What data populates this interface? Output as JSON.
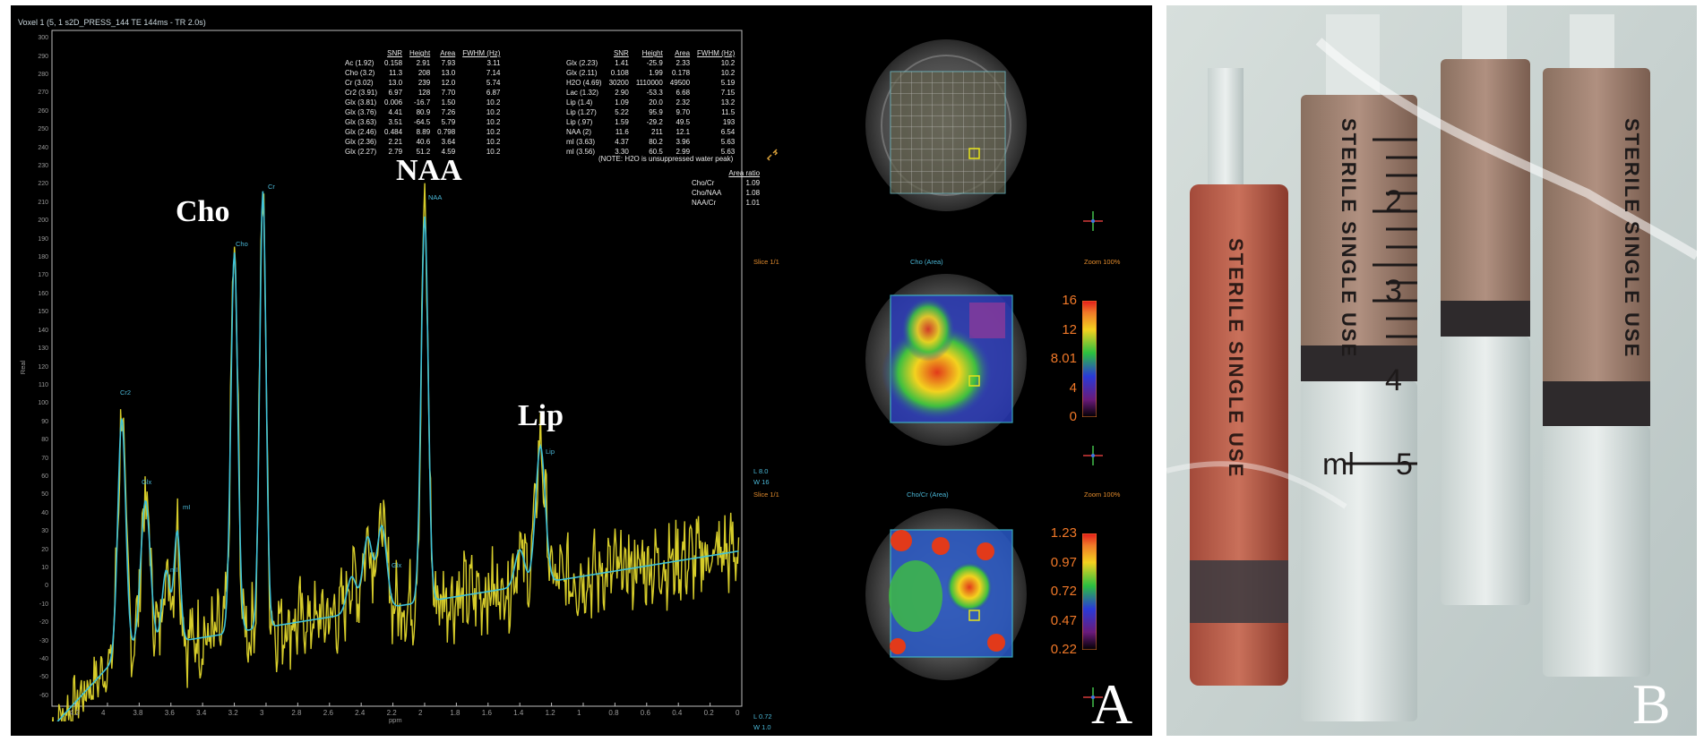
{
  "panel_a": {
    "letter": "A",
    "title": "Voxel 1 (5, 1 s2D_PRESS_144 TE 144ms - TR 2.0s)",
    "y_axis_label": "Real",
    "x_axis_label": "ppm",
    "y_ticks": [
      "300",
      "290",
      "280",
      "270",
      "260",
      "250",
      "240",
      "230",
      "220",
      "210",
      "200",
      "190",
      "180",
      "170",
      "160",
      "150",
      "140",
      "130",
      "120",
      "110",
      "100",
      "90",
      "80",
      "70",
      "60",
      "50",
      "40",
      "30",
      "20",
      "10",
      "0",
      "-10",
      "-20",
      "-30",
      "-40",
      "-50",
      "-60"
    ],
    "x_ticks": [
      "4.2",
      "4",
      "3.8",
      "3.6",
      "3.4",
      "3.2",
      "3",
      "2.8",
      "2.6",
      "2.4",
      "2.2",
      "2",
      "1.8",
      "1.6",
      "1.4",
      "1.2",
      "1",
      "0.8",
      "0.6",
      "0.4",
      "0.2",
      "0"
    ],
    "peak_labels": {
      "cho": "Cho",
      "naa": "NAA",
      "lip": "Lip"
    },
    "peak_small_labels": {
      "cr2": "Cr2",
      "glx": "Glx",
      "mi": "mI",
      "mi2": "mI",
      "cho": "Cho",
      "cr": "Cr",
      "naa": "NAA",
      "glx2": "Glx",
      "lip": "Lip"
    },
    "table_left": {
      "headers": [
        "SNR",
        "Height",
        "Area",
        "FWHM (Hz)"
      ],
      "rows": [
        {
          "name": "Ac (1.92)",
          "vals": [
            "0.158",
            "2.91",
            "7.93",
            "3.11"
          ]
        },
        {
          "name": "Cho (3.2)",
          "vals": [
            "11.3",
            "208",
            "13.0",
            "7.14"
          ]
        },
        {
          "name": "Cr (3.02)",
          "vals": [
            "13.0",
            "239",
            "12.0",
            "5.74"
          ]
        },
        {
          "name": "Cr2 (3.91)",
          "vals": [
            "6.97",
            "128",
            "7.70",
            "6.87"
          ]
        },
        {
          "name": "Glx (3.81)",
          "vals": [
            "0.006",
            "-16.7",
            "1.50",
            "10.2"
          ]
        },
        {
          "name": "Glx (3.76)",
          "vals": [
            "4.41",
            "80.9",
            "7.26",
            "10.2"
          ]
        },
        {
          "name": "Glx (3.63)",
          "vals": [
            "3.51",
            "-64.5",
            "5.79",
            "10.2"
          ]
        },
        {
          "name": "Glx (2.46)",
          "vals": [
            "0.484",
            "8.89",
            "0.798",
            "10.2"
          ]
        },
        {
          "name": "Glx (2.36)",
          "vals": [
            "2.21",
            "40.6",
            "3.64",
            "10.2"
          ]
        },
        {
          "name": "Glx (2.27)",
          "vals": [
            "2.79",
            "51.2",
            "4.59",
            "10.2"
          ]
        }
      ]
    },
    "table_right": {
      "headers": [
        "SNR",
        "Height",
        "Area",
        "FWHM (Hz)"
      ],
      "rows": [
        {
          "name": "Glx (2.23)",
          "vals": [
            "1.41",
            "-25.9",
            "2.33",
            "10.2"
          ]
        },
        {
          "name": "Glx (2.11)",
          "vals": [
            "0.108",
            "1.99",
            "0.178",
            "10.2"
          ]
        },
        {
          "name": "H2O (4.69)",
          "vals": [
            "30200",
            "1110000",
            "49500",
            "5.19"
          ]
        },
        {
          "name": "Lac (1.32)",
          "vals": [
            "2.90",
            "-53.3",
            "6.68",
            "7.15"
          ]
        },
        {
          "name": "Lip (1.4)",
          "vals": [
            "1.09",
            "20.0",
            "2.32",
            "13.2"
          ]
        },
        {
          "name": "Lip (1.27)",
          "vals": [
            "5.22",
            "95.9",
            "9.70",
            "11.5"
          ]
        },
        {
          "name": "Lip (.97)",
          "vals": [
            "1.59",
            "-29.2",
            "49.5",
            "193"
          ]
        },
        {
          "name": "NAA (2)",
          "vals": [
            "11.6",
            "211",
            "12.1",
            "6.54"
          ]
        },
        {
          "name": "mI (3.63)",
          "vals": [
            "4.37",
            "80.2",
            "3.96",
            "5.63"
          ]
        },
        {
          "name": "mI (3.56)",
          "vals": [
            "3.30",
            "60.5",
            "2.99",
            "5.63"
          ]
        }
      ]
    },
    "note": "(NOTE: H2O is unsuppressed water peak)",
    "area_ratio": {
      "header": "Area ratio",
      "rows": [
        {
          "name": "Cho/Cr",
          "val": "1.09"
        },
        {
          "name": "Cho/NAA",
          "val": "1.08"
        },
        {
          "name": "NAA/Cr",
          "val": "1.01"
        }
      ]
    },
    "slice_label_1": "Slice 1/1",
    "map1_title": "Cho (Area)",
    "zoom_1": "Zoom 100%",
    "slice_label_2": "Slice 1/1",
    "map2_title": "Cho/Cr (Area)",
    "zoom_2": "Zoom 100%",
    "lw1_l": "L 8.0",
    "lw1_w": "W 16",
    "lw2_l": "L 0.72",
    "lw2_w": "W 1.0",
    "colorbar1_labels": [
      "16",
      "12",
      "8.01",
      "4",
      "0"
    ],
    "colorbar2_labels": [
      "1.23",
      "0.97",
      "0.72",
      "0.47",
      "0.22"
    ],
    "colors": {
      "spectrum_fit": "#3fc2d8",
      "spectrum_raw": "#d6cc2a",
      "accent_orange": "#f07828"
    }
  },
  "panel_b": {
    "letter": "B",
    "syringe_text": "STERILE SINGLE USE",
    "unit_label": "ml",
    "scale_numbers": [
      "2",
      "3",
      "4",
      "5"
    ]
  }
}
